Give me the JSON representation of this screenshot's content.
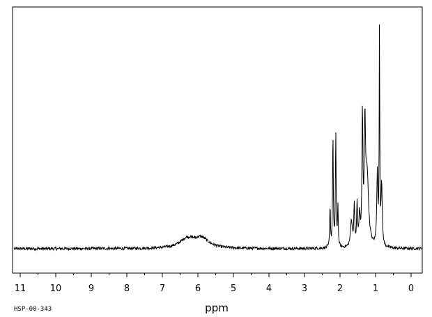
{
  "chart_data": {
    "type": "line",
    "title": "",
    "xlabel": "ppm",
    "ylabel": "",
    "x_reversed": true,
    "xlim": [
      11.3,
      -0.3
    ],
    "ylim": [
      -0.09,
      1.0
    ],
    "grid": false,
    "legend": "none",
    "ticks_major": [
      11,
      10,
      9,
      8,
      7,
      6,
      5,
      4,
      3,
      2,
      1,
      0
    ],
    "tick_labels": [
      "11",
      "10",
      "9",
      "8",
      "7",
      "6",
      "5",
      "4",
      "3",
      "2",
      "1",
      "0"
    ],
    "spectrum_code": "HSP-00-343",
    "baseline": 0.0,
    "noise_amplitude": 0.006,
    "series": [
      {
        "name": "",
        "color": "#000000",
        "peaks": [
          {
            "ppm": 6.3,
            "height": 0.038,
            "width": 0.25
          },
          {
            "ppm": 5.9,
            "height": 0.04,
            "width": 0.25
          },
          {
            "ppm": 2.28,
            "height": 0.175,
            "width": 0.012
          },
          {
            "ppm": 2.2,
            "height": 0.48,
            "width": 0.012
          },
          {
            "ppm": 2.12,
            "height": 0.48,
            "width": 0.012
          },
          {
            "ppm": 2.06,
            "height": 0.17,
            "width": 0.012
          },
          {
            "ppm": 1.68,
            "height": 0.11,
            "width": 0.03
          },
          {
            "ppm": 1.6,
            "height": 0.17,
            "width": 0.015
          },
          {
            "ppm": 1.52,
            "height": 0.17,
            "width": 0.015
          },
          {
            "ppm": 1.45,
            "height": 0.12,
            "width": 0.02
          },
          {
            "ppm": 1.37,
            "height": 0.53,
            "width": 0.015
          },
          {
            "ppm": 1.3,
            "height": 0.45,
            "width": 0.02
          },
          {
            "ppm": 1.24,
            "height": 0.3,
            "width": 0.05
          },
          {
            "ppm": 0.95,
            "height": 0.3,
            "width": 0.02
          },
          {
            "ppm": 0.89,
            "height": 0.92,
            "width": 0.009
          },
          {
            "ppm": 0.83,
            "height": 0.26,
            "width": 0.02
          }
        ]
      }
    ]
  }
}
